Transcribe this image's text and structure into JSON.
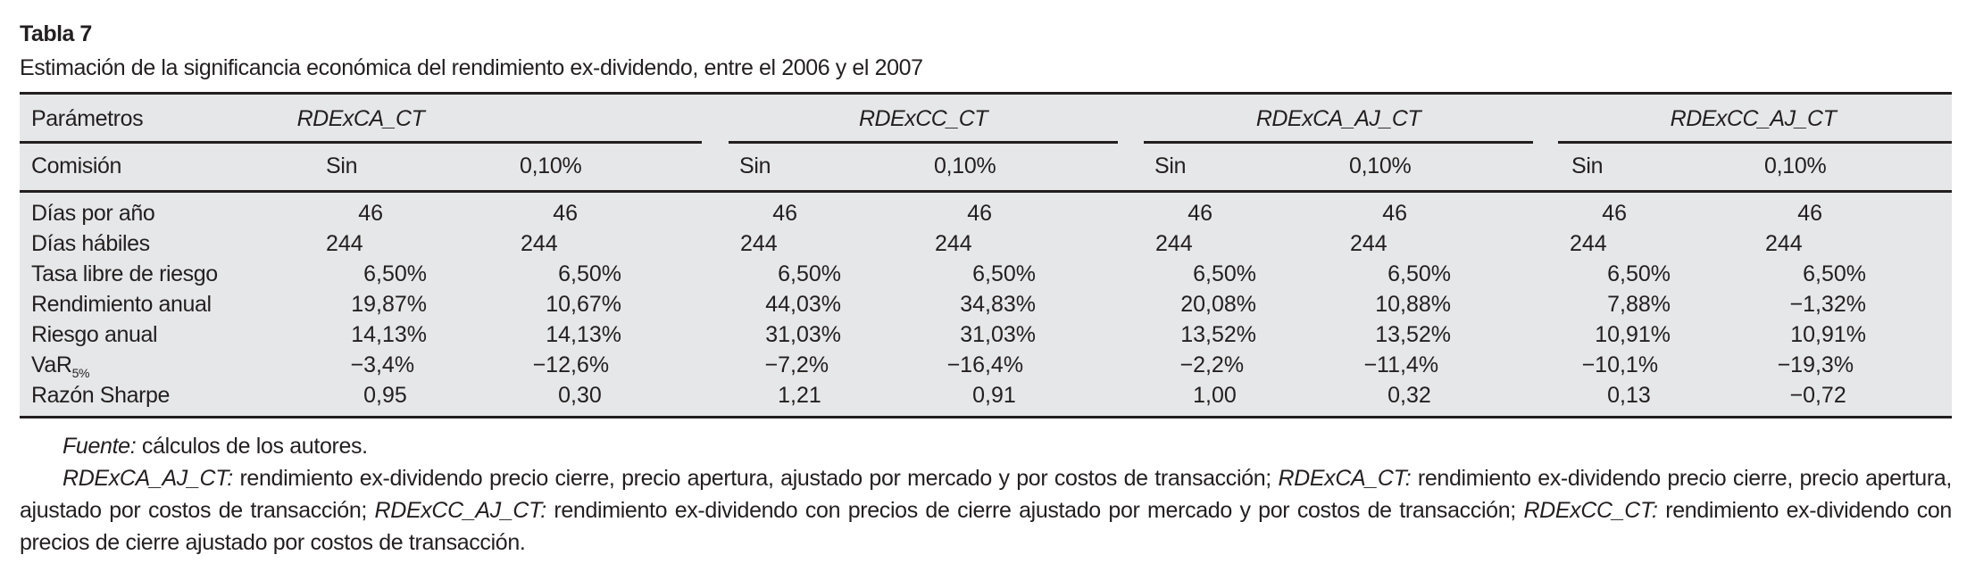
{
  "title": "Tabla 7",
  "subtitle": "Estimación de la significancia económica del rendimiento ex-dividendo, entre el 2006 y el 2007",
  "table": {
    "header_label": "Parámetros",
    "commission_label": "Comisión",
    "groups": [
      "RDExCA_CT",
      "RDExCC_CT",
      "RDExCA_AJ_CT",
      "RDExCC_AJ_CT"
    ],
    "subheaders": [
      "Sin",
      "0,10%",
      "Sin",
      "0,10%",
      "Sin",
      "0,10%",
      "Sin",
      "0,10%"
    ],
    "rows": [
      {
        "label": "Días por año",
        "label_sub": "",
        "values": [
          "46",
          "46",
          "46",
          "46",
          "46",
          "46",
          "46",
          "46"
        ]
      },
      {
        "label": "Días hábiles",
        "label_sub": "",
        "values": [
          "244",
          "244",
          "244",
          "244",
          "244",
          "244",
          "244",
          "244"
        ]
      },
      {
        "label": "Tasa libre de riesgo",
        "label_sub": "",
        "values": [
          "6,50%",
          "6,50%",
          "6,50%",
          "6,50%",
          "6,50%",
          "6,50%",
          "6,50%",
          "6,50%"
        ]
      },
      {
        "label": "Rendimiento anual",
        "label_sub": "",
        "values": [
          "19,87%",
          "10,67%",
          "44,03%",
          "34,83%",
          "20,08%",
          "10,88%",
          "7,88%",
          "−1,32%"
        ]
      },
      {
        "label": "Riesgo anual",
        "label_sub": "",
        "values": [
          "14,13%",
          "14,13%",
          "31,03%",
          "31,03%",
          "13,52%",
          "13,52%",
          "10,91%",
          "10,91%"
        ]
      },
      {
        "label": "VaR",
        "label_sub": "5%",
        "values": [
          "−3,4%",
          "−12,6%",
          "−7,2%",
          "−16,4%",
          "−2,2%",
          "−11,4%",
          "−10,1%",
          "−19,3%"
        ]
      },
      {
        "label": "Razón Sharpe",
        "label_sub": "",
        "values": [
          "0,95",
          "0,30",
          "1,21",
          "0,91",
          "1,00",
          "0,32",
          "0,13",
          "−0,72"
        ]
      }
    ]
  },
  "notes": {
    "source_label": "Fuente:",
    "source_text": " cálculos de los autores.",
    "defs": [
      {
        "term": "RDExCA_AJ_CT:",
        "text": " rendimiento ex-dividendo precio cierre, precio apertura, ajustado por mercado y por costos de transacción; "
      },
      {
        "term": "RDExCA_CT:",
        "text": " rendimiento ex-dividendo precio cierre, precio apertura, ajustado por costos de transacción; "
      },
      {
        "term": "RDExCC_AJ_CT:",
        "text": " rendimiento ex-dividendo con precios de cierre ajustado por mercado y por costos de transacción; "
      },
      {
        "term": "RDExCC_CT:",
        "text": " rendimiento ex-dividendo con precios de cierre ajustado por costos de transacción."
      }
    ]
  }
}
